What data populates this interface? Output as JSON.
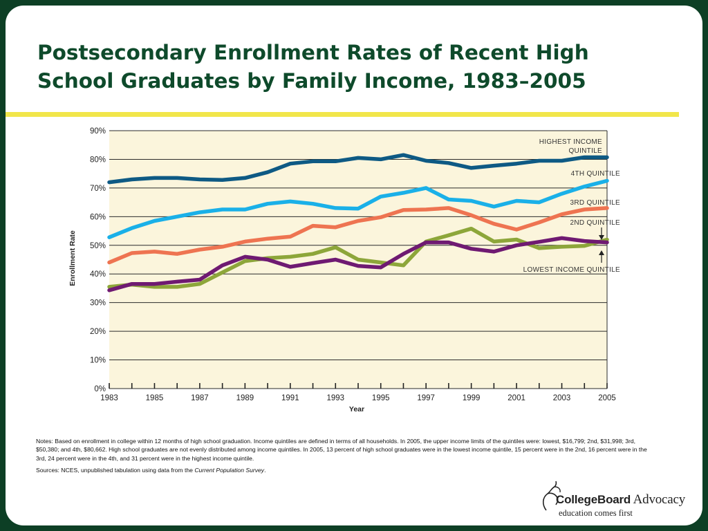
{
  "slide": {
    "title_line1": "Postsecondary Enrollment Rates of Recent High",
    "title_line2": "School Graduates by Family Income, 1983–2005",
    "notes": "Notes: Based on enrollment in college within 12 months of high school graduation. Income quintiles are defined in terms of all households. In 2005, the upper income limits of the quintiles were: lowest, $16,799; 2nd, $31,998; 3rd, $50,380; and 4th, $80,662. High school graduates are not evenly distributed among income quintiles. In 2005, 13 percent of high school graduates were in the lowest income quintile, 15 percent were in the 2nd, 16 percent were in the 3rd, 24 percent were in the 4th, and 31 percent were in the highest income quintile.",
    "sources_prefix": "Sources: NCES, unpublished tabulation using data from the ",
    "sources_italic": "Current Population Survey",
    "sources_suffix": ".",
    "logo_text_bold": "CollegeBoard",
    "logo_text_light": " Advocacy",
    "logo_tagline": "education comes first",
    "colors": {
      "background": "#0d3f25",
      "title": "#0e4a2b",
      "rule": "#f1e64a",
      "plot_bg": "#fbf5dc"
    }
  },
  "chart_data": {
    "type": "line",
    "xlabel": "Year",
    "ylabel": "Enrollment Rate",
    "xlim": [
      1983,
      2005
    ],
    "ylim": [
      0,
      90
    ],
    "x_tick_labels": [
      "1983",
      "1985",
      "1987",
      "1989",
      "1991",
      "1993",
      "1995",
      "1997",
      "1999",
      "2001",
      "2003",
      "2005"
    ],
    "y_tick_labels": [
      "0%",
      "10%",
      "20%",
      "30%",
      "40%",
      "50%",
      "60%",
      "70%",
      "80%",
      "90%"
    ],
    "grid": "horizontal",
    "x": [
      1983,
      1984,
      1985,
      1986,
      1987,
      1988,
      1989,
      1990,
      1991,
      1992,
      1993,
      1994,
      1995,
      1996,
      1997,
      1998,
      1999,
      2000,
      2001,
      2002,
      2003,
      2004,
      2005
    ],
    "series": [
      {
        "name": "HIGHEST INCOME QUINTILE",
        "label_lines": [
          "HIGHEST INCOME",
          "QUINTILE"
        ],
        "color": "#0e5a84",
        "values": [
          72,
          73,
          73.5,
          73.5,
          73,
          72.8,
          73.5,
          75.5,
          78.5,
          79.3,
          79.3,
          80.5,
          80,
          81.5,
          79.5,
          78.7,
          77,
          77.8,
          78.5,
          79.5,
          79.5,
          80.7,
          80.7
        ]
      },
      {
        "name": "4TH QUINTILE",
        "label_lines": [
          "4TH QUINTILE"
        ],
        "color": "#1ab0e8",
        "values": [
          52.8,
          56,
          58.5,
          60,
          61.5,
          62.5,
          62.5,
          64.5,
          65.3,
          64.5,
          63,
          62.8,
          67,
          68.3,
          70,
          66,
          65.5,
          63.5,
          65.5,
          65,
          68,
          70.5,
          72.5
        ]
      },
      {
        "name": "3RD QUINTILE",
        "label_lines": [
          "3RD QUINTILE"
        ],
        "color": "#ee7451",
        "values": [
          44,
          47.3,
          47.8,
          47,
          48.5,
          49.5,
          51.3,
          52.3,
          53,
          56.8,
          56.3,
          58.5,
          59.8,
          62.3,
          62.5,
          63,
          60.5,
          57.5,
          55.5,
          58,
          60.8,
          62.5,
          63
        ]
      },
      {
        "name": "2ND QUINTILE",
        "label_lines": [
          "2ND QUINTILE"
        ],
        "color": "#8da63a",
        "values": [
          35.5,
          36.3,
          35.5,
          35.5,
          36.5,
          40.5,
          44.5,
          45.5,
          46,
          47,
          49.3,
          45,
          44,
          43,
          51.3,
          53.5,
          55.8,
          51.3,
          52,
          49,
          49.5,
          49.8,
          52
        ]
      },
      {
        "name": "LOWEST INCOME QUINTILE",
        "label_lines": [
          "LOWEST INCOME QUINTILE"
        ],
        "color": "#6f1a72",
        "values": [
          34.3,
          36.5,
          36.5,
          37.3,
          38,
          43,
          46,
          45,
          42.5,
          43.8,
          45,
          42.8,
          42.3,
          47,
          51,
          51,
          48.8,
          47.8,
          50,
          51.2,
          52.5,
          51.5,
          51
        ]
      }
    ]
  }
}
